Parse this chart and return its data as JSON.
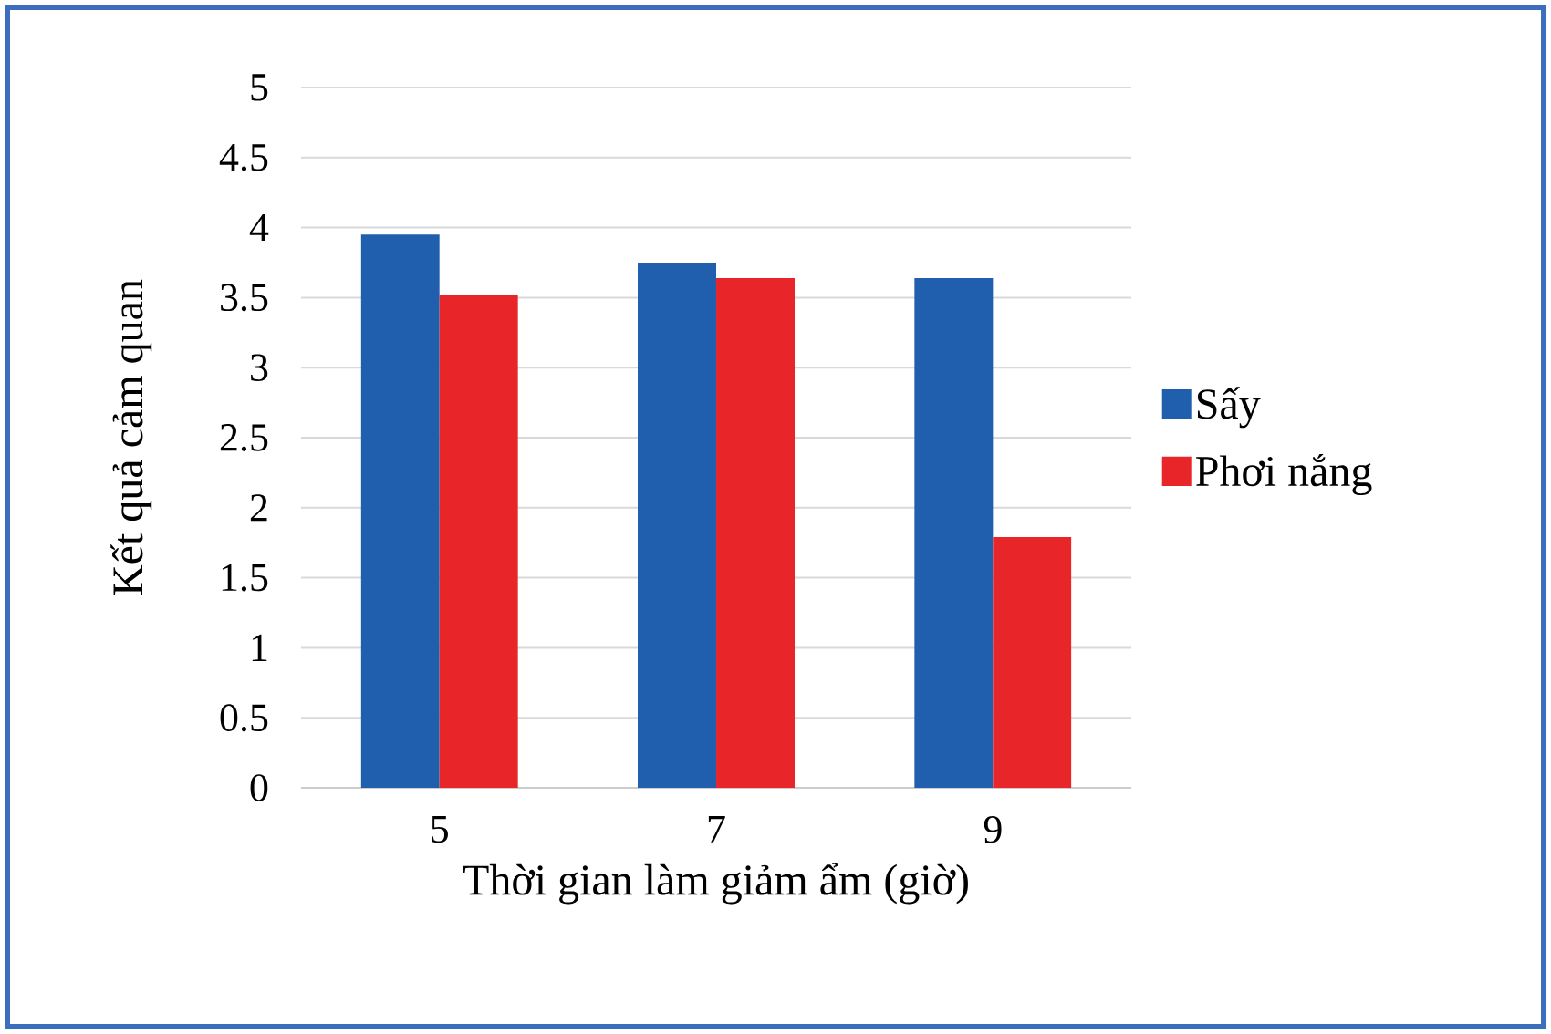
{
  "chart_data": {
    "type": "bar",
    "xlabel": "Thời gian làm giảm ẩm (giờ)",
    "ylabel": "Kết quả cảm quan",
    "categories": [
      "5",
      "7",
      "9"
    ],
    "series": [
      {
        "name": "Sấy",
        "color": "#1f5fad",
        "values": [
          3.95,
          3.75,
          3.64
        ]
      },
      {
        "name": "Phơi nắng",
        "color": "#e8262a",
        "values": [
          3.52,
          3.64,
          1.79
        ]
      }
    ],
    "ylim": [
      0,
      5
    ],
    "yticks": [
      0,
      0.5,
      1,
      1.5,
      2,
      2.5,
      3,
      3.5,
      4,
      4.5,
      5
    ],
    "grid": "y",
    "legend": "right"
  }
}
